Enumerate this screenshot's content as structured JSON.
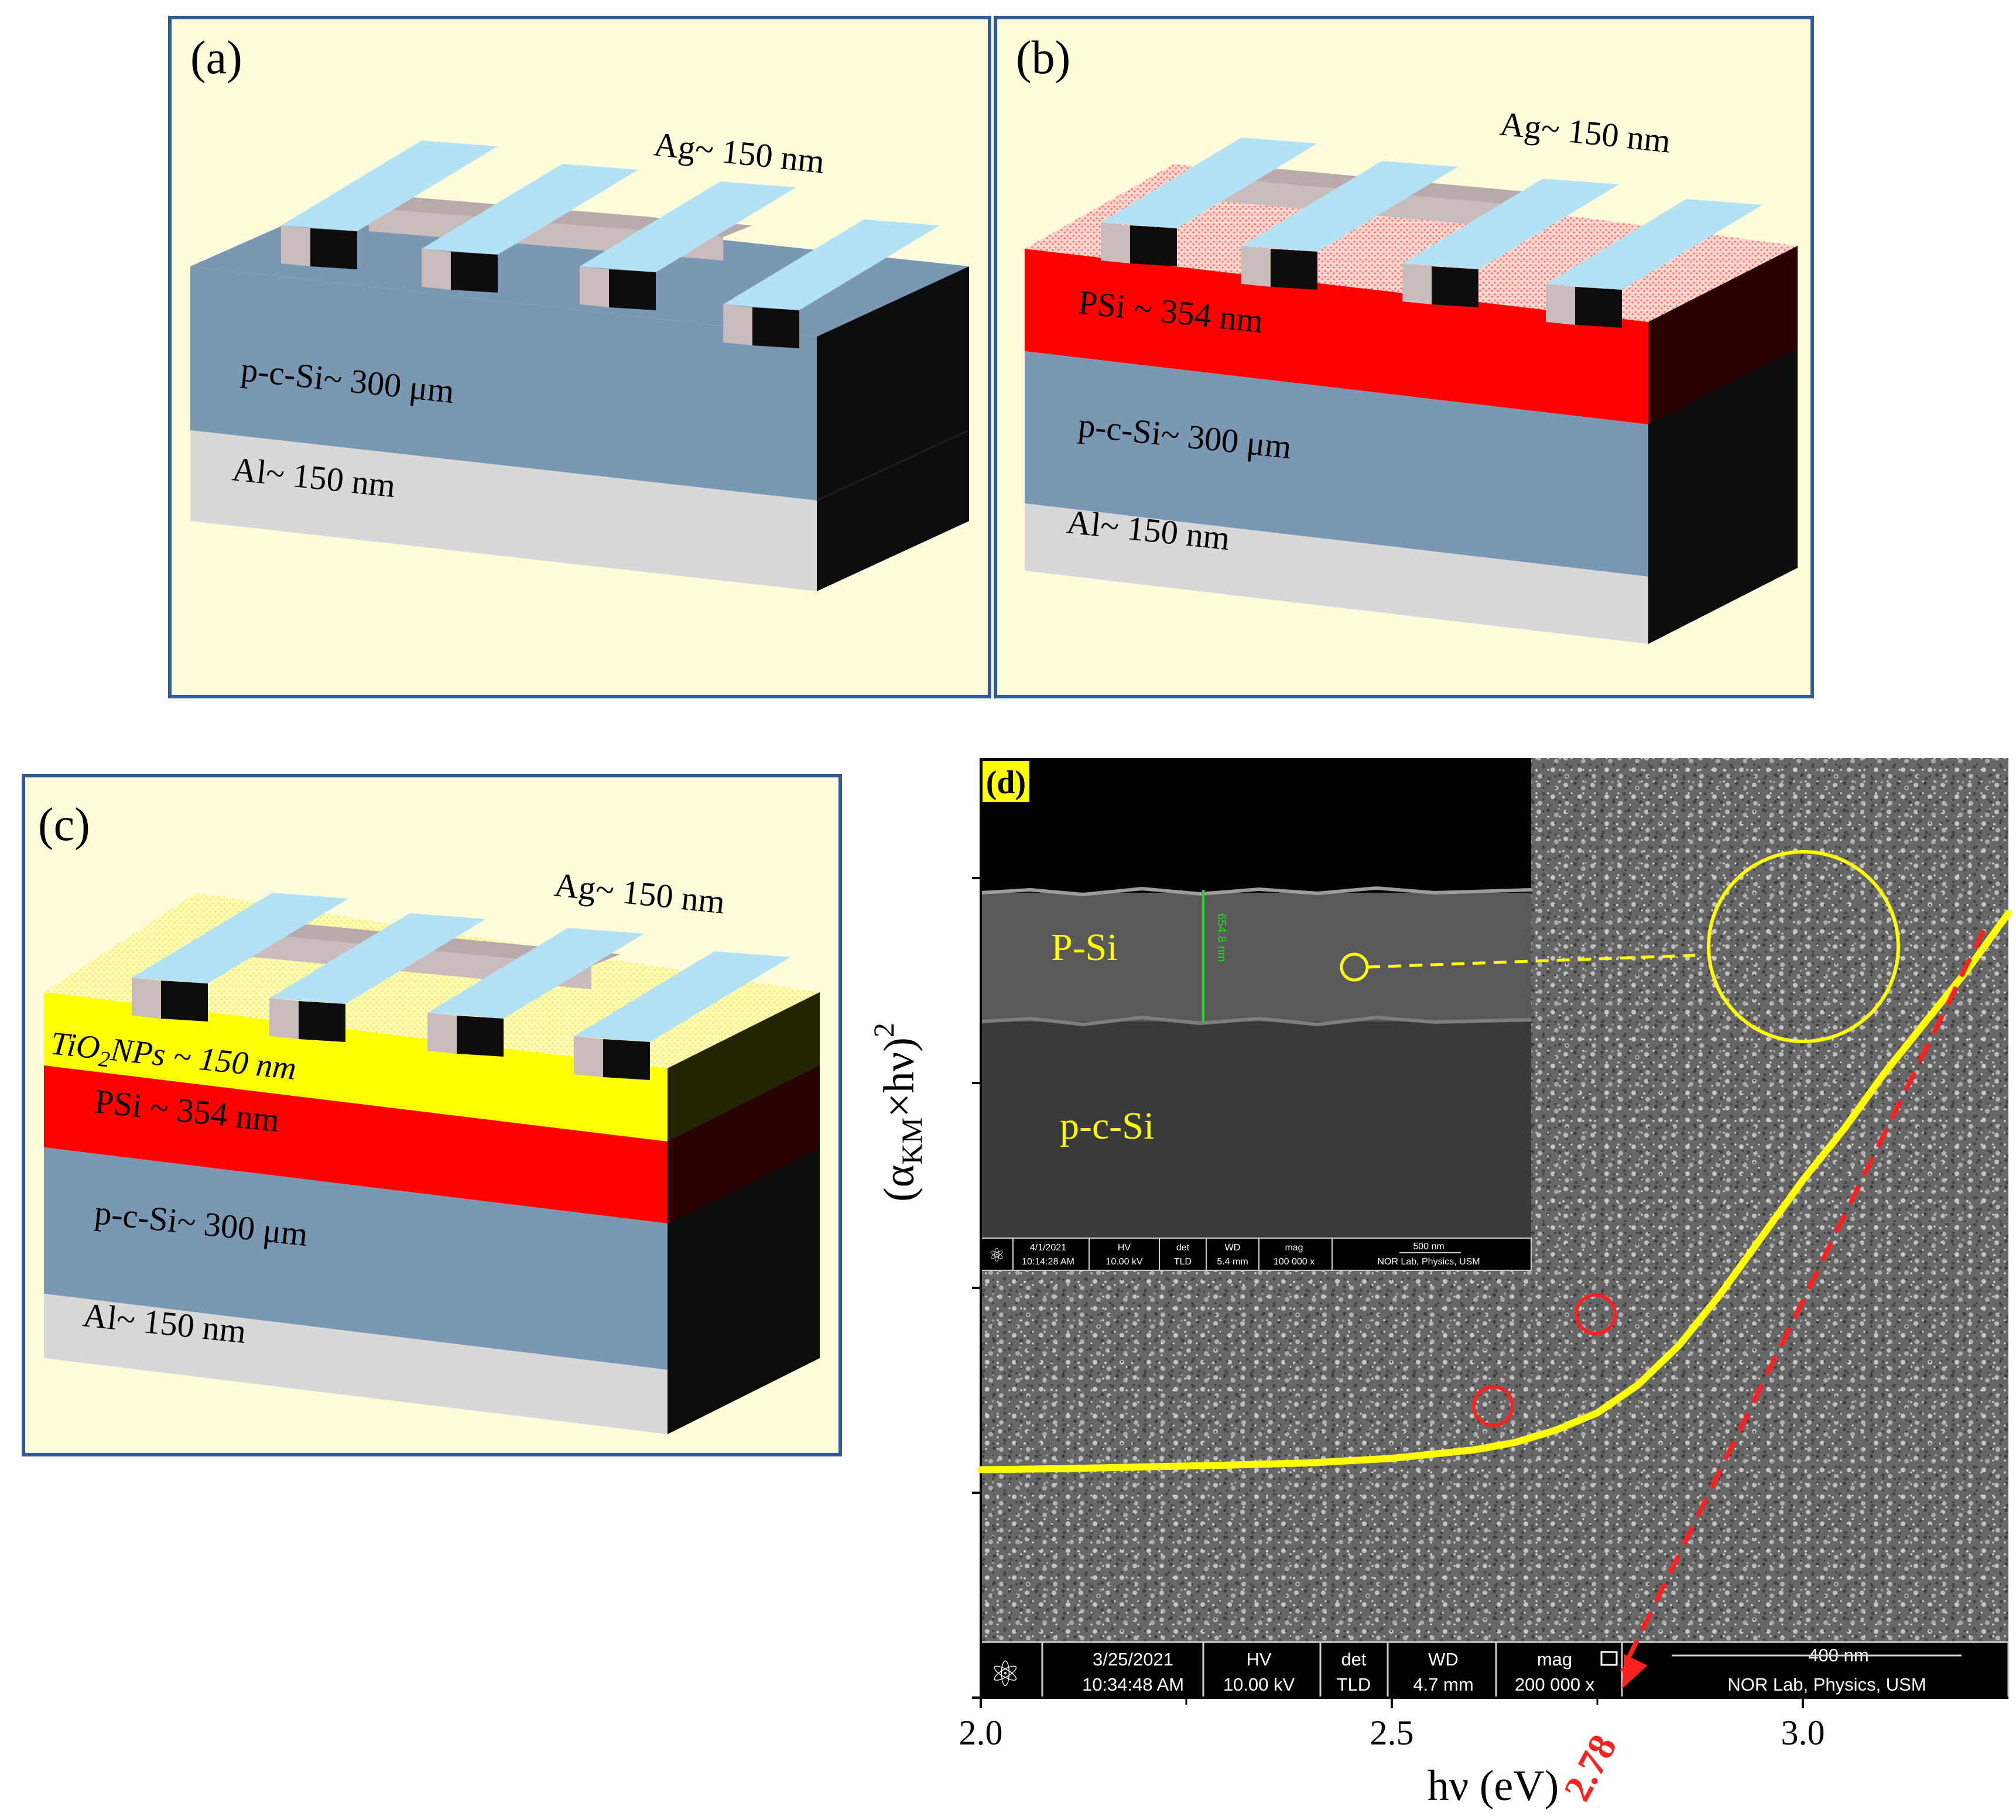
{
  "colors": {
    "panel_bg": "#fffcdc",
    "panel_border": "#2e5a96",
    "silicon": "#7b98b3",
    "aluminum": "#d8d8d8",
    "psi": "#ff0000",
    "tio2": "#ffff00",
    "side_dark": "#0d0d0d",
    "finger_top": "#b3e2f5",
    "finger_face": "#c8bcbc",
    "curve": "#ffff00",
    "tangent": "#ff2020",
    "gap_label": "#ff2020"
  },
  "panel_a": {
    "label": "(a)",
    "ag": "Ag~ 150 nm",
    "si": "p-c-Si~ 300 μm",
    "al": "Al~ 150 nm"
  },
  "panel_b": {
    "label": "(b)",
    "ag": "Ag~ 150 nm",
    "psi": "PSi ~ 354 nm",
    "si": "p-c-Si~ 300 μm",
    "al": "Al~ 150 nm"
  },
  "panel_c": {
    "label": "(c)",
    "ag": "Ag~ 150 nm",
    "tio2_main": "TiO",
    "tio2_sub": "2",
    "tio2_rest": "NPs ~ 150 nm",
    "psi": "PSi ~ 354 nm",
    "si": "p-c-Si~ 300 μm",
    "al": "Al~ 150 nm"
  },
  "panel_d": {
    "label": "(d)",
    "inset": {
      "psi_label": "P-Si",
      "si_label": "p-c-Si",
      "thickness": "654.8 nm",
      "date": "4/1/2021",
      "time": "10:14:28 AM",
      "hv_head": "HV",
      "hv": "10.00 kV",
      "det_head": "det",
      "det": "TLD",
      "wd_head": "WD",
      "wd": "5.4 mm",
      "mag_head": "mag",
      "mag": "100 000 x",
      "scale": "500 nm",
      "lab": "NOR Lab, Physics, USM"
    },
    "sem_bar": {
      "date": "3/25/2021",
      "time": "10:34:48 AM",
      "hv_head": "HV",
      "hv": "10.00 kV",
      "det_head": "det",
      "det": "TLD",
      "wd_head": "WD",
      "wd": "4.7 mm",
      "mag_head": "mag",
      "mag": "200 000 x",
      "scale": "400 nm",
      "lab": "NOR Lab, Physics, USM"
    }
  },
  "chart_data": {
    "type": "line",
    "xlabel": "hν (eV)",
    "ylabel_alpha": "(α",
    "ylabel_sub": "KM",
    "ylabel_rest": "×hν)",
    "ylabel_sup": "2",
    "xlim": [
      2.0,
      3.25
    ],
    "xticks": [
      2.0,
      2.5,
      3.0
    ],
    "xtick_labels": [
      "2.0",
      "2.5",
      "3.0"
    ],
    "band_gap_label": "2.78",
    "band_gap_value": 2.78,
    "series": [
      {
        "x": [
          2.0,
          2.1,
          2.2,
          2.3,
          2.4,
          2.5,
          2.6,
          2.65,
          2.7,
          2.75,
          2.8,
          2.85,
          2.9,
          2.95,
          3.0,
          3.05,
          3.1,
          3.15,
          3.2,
          3.25
        ],
        "y": [
          0.02,
          0.022,
          0.025,
          0.028,
          0.032,
          0.04,
          0.055,
          0.068,
          0.09,
          0.12,
          0.17,
          0.24,
          0.33,
          0.43,
          0.53,
          0.62,
          0.72,
          0.81,
          0.9,
          1.0
        ]
      }
    ],
    "tangent": {
      "x": [
        2.78,
        3.22
      ],
      "y": [
        -0.46,
        0.97
      ]
    }
  }
}
